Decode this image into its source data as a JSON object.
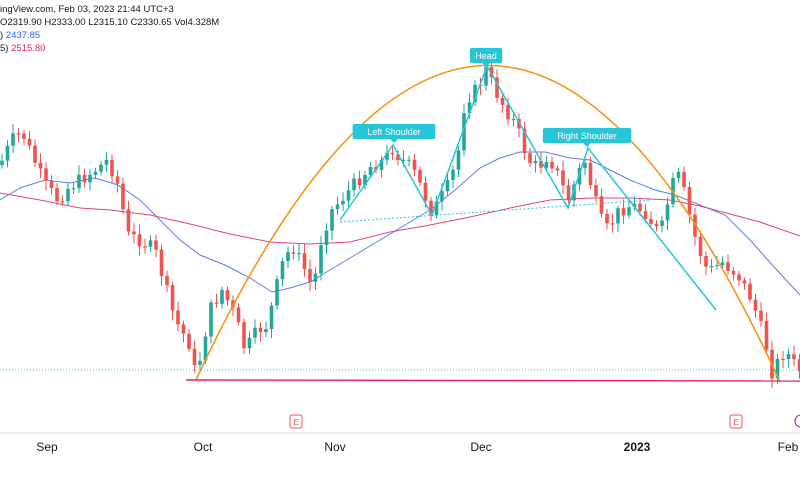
{
  "header": {
    "source_line": "ingView.com, Feb 03, 2023 21:44 UTC+3",
    "ohlc": {
      "o": "O2319.90",
      "h": "H2333.00",
      "l": "L2315.10",
      "c": "C2330.65",
      "vol": "Vol4.328M"
    },
    "ma1": {
      "label": ")",
      "value": "2437.85"
    },
    "ma2": {
      "label": "5)",
      "value": "2515.80"
    }
  },
  "colors": {
    "up": "#26a69a",
    "down": "#ef5350",
    "arc": "#f7931a",
    "pattern": "#26c6da",
    "ma_fast": "#5b7fe6",
    "ma_slow": "#e0457b",
    "support": "#e91e63",
    "label_bg": "#26c6da",
    "earnings": "#ef5350"
  },
  "chart_data": {
    "type": "candlestick",
    "title": "",
    "xlabel": "",
    "ylabel": "",
    "x_ticks": [
      "Sep",
      "Oct",
      "Nov",
      "Dec",
      "2023",
      "Feb"
    ],
    "annotations": {
      "left_shoulder": "Left Shoulder",
      "head": "Head",
      "right_shoulder": "Right Shoulder"
    },
    "earnings_markers": [
      "E",
      "E"
    ],
    "grid": false,
    "legend": "none"
  }
}
